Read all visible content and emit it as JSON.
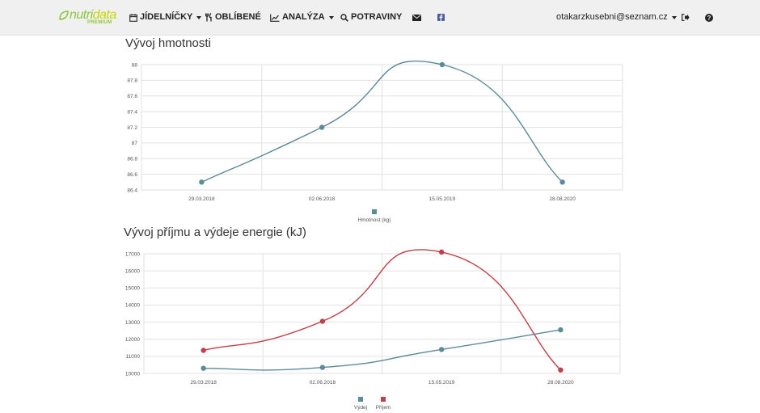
{
  "nav": {
    "logo_text_1": "nutri",
    "logo_text_2": "data",
    "logo_sub": "PREMIUM",
    "jidelnicky": "JÍDELNÍČKY",
    "oblibene": "OBLÍBENÉ",
    "analyza": "ANALÝZA",
    "potraviny": "POTRAVINY",
    "user_email": "otakarzkusebni@seznam.cz"
  },
  "colors": {
    "weight": "#5b8a99",
    "vydej": "#5b8a99",
    "prijem": "#c0404a",
    "grid": "#e2e2e2"
  },
  "chart_data": [
    {
      "type": "line",
      "title": "Vývoj hmotnosti",
      "categories": [
        "29.03.2018",
        "02.06.2018",
        "15.05.2019",
        "28.08.2020"
      ],
      "series": [
        {
          "name": "Hmotnost (kg)",
          "values": [
            86.5,
            87.2,
            88.0,
            86.5
          ]
        }
      ],
      "ylim": [
        86.4,
        88.0
      ],
      "yticks": [
        86.4,
        86.6,
        86.8,
        87,
        87.2,
        87.4,
        87.6,
        87.8,
        88
      ],
      "grid": true,
      "legend": "bottom"
    },
    {
      "type": "line",
      "title": "Vývoj příjmu a výdeje energie (kJ)",
      "categories": [
        "29.03.2018",
        "02.06.2018",
        "15.05.2019",
        "28.08.2020"
      ],
      "series": [
        {
          "name": "Výdej",
          "values": [
            10300,
            10350,
            11400,
            12550
          ]
        },
        {
          "name": "Příjem",
          "values": [
            11350,
            13050,
            17100,
            10200
          ]
        }
      ],
      "ylim": [
        10000,
        17000
      ],
      "yticks": [
        10000,
        11000,
        12000,
        13000,
        14000,
        15000,
        16000,
        17000
      ],
      "grid": true,
      "legend": "bottom"
    }
  ]
}
